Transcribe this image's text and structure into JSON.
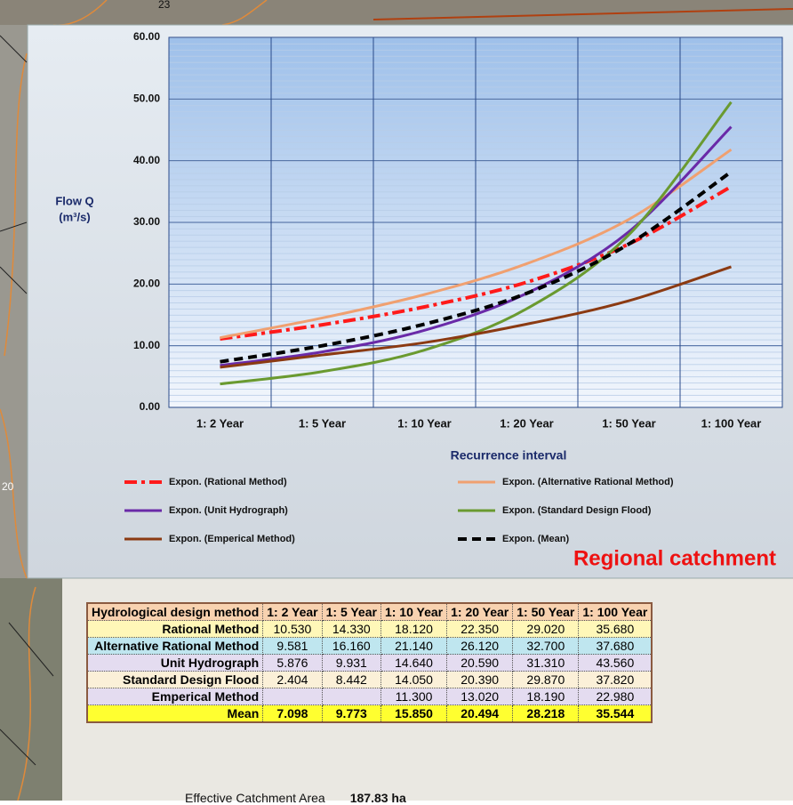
{
  "map_labels": [
    "23",
    "20"
  ],
  "chart_data": {
    "type": "line",
    "categories": [
      "1: 2 Year",
      "1: 5 Year",
      "1: 10 Year",
      "1: 20 Year",
      "1: 50 Year",
      "1: 100 Year"
    ],
    "x_label": "Recurrence interval",
    "y_label": [
      "Flow Q",
      "(m³/s)"
    ],
    "annotation": "Regional catchment",
    "ylim": [
      0,
      60
    ],
    "yticks": [
      {
        "value": 0,
        "label": "0.00"
      },
      {
        "value": 10,
        "label": "10.00"
      },
      {
        "value": 20,
        "label": "20.00"
      },
      {
        "value": 30,
        "label": "30.00"
      },
      {
        "value": 40,
        "label": "40.00"
      },
      {
        "value": 50,
        "label": "50.00"
      },
      {
        "value": 60,
        "label": "60.00"
      }
    ],
    "grid": true,
    "series": [
      {
        "name": "Expon. (Rational Method)",
        "color": "#ff1a1a",
        "style": "dashdot",
        "values": [
          11.1,
          13.4,
          16.3,
          20.3,
          26.5,
          35.8
        ]
      },
      {
        "name": "Expon. (Alternative Rational Method)",
        "color": "#f0a070",
        "style": "solid",
        "values": [
          11.3,
          14.5,
          18.3,
          23.3,
          30.5,
          41.8
        ]
      },
      {
        "name": "Expon. (Unit Hydrograph)",
        "color": "#6a2aa8",
        "style": "solid",
        "values": [
          6.8,
          9.0,
          12.5,
          18.5,
          28.5,
          45.5
        ]
      },
      {
        "name": "Expon. (Standard Design Flood)",
        "color": "#6a9a30",
        "style": "solid",
        "values": [
          3.8,
          5.8,
          9.3,
          16.0,
          28.0,
          49.5
        ]
      },
      {
        "name": "Expon. (Emperical Method)",
        "color": "#8b3a12",
        "style": "solid",
        "values": [
          6.5,
          8.5,
          10.5,
          13.5,
          17.3,
          22.8
        ]
      },
      {
        "name": "Expon. (Mean)",
        "color": "#000000",
        "style": "dashed",
        "values": [
          7.4,
          10.0,
          13.5,
          18.5,
          26.5,
          38.2
        ]
      }
    ]
  },
  "table": {
    "header": [
      "Hydrological design method",
      "1: 2 Year",
      "1: 5 Year",
      "1: 10 Year",
      "1: 20 Year",
      "1: 50 Year",
      "1: 100 Year"
    ],
    "rows": [
      [
        "Rational Method",
        "10.530",
        "14.330",
        "18.120",
        "22.350",
        "29.020",
        "35.680"
      ],
      [
        "Alternative Rational Method",
        "9.581",
        "16.160",
        "21.140",
        "26.120",
        "32.700",
        "37.680"
      ],
      [
        "Unit Hydrograph",
        "5.876",
        "9.931",
        "14.640",
        "20.590",
        "31.310",
        "43.560"
      ],
      [
        "Standard Design Flood",
        "2.404",
        "8.442",
        "14.050",
        "20.390",
        "29.870",
        "37.820"
      ],
      [
        "Emperical Method",
        null,
        null,
        "11.300",
        "13.020",
        "18.190",
        "22.980"
      ],
      [
        "Mean",
        "7.098",
        "9.773",
        "15.850",
        "20.494",
        "28.218",
        "35.544"
      ]
    ]
  },
  "footer": {
    "label": "Effective Catchment Area",
    "value": "187.83 ha"
  }
}
